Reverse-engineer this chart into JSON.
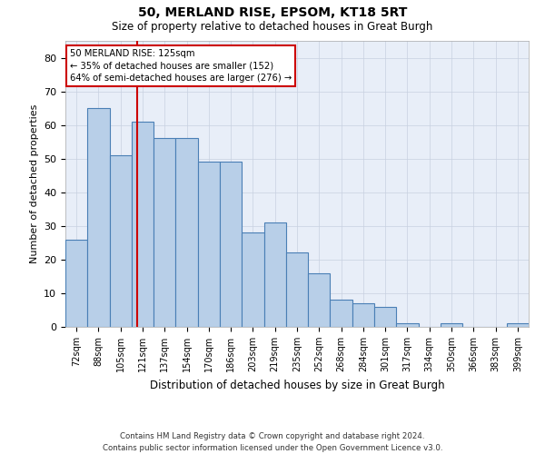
{
  "title1": "50, MERLAND RISE, EPSOM, KT18 5RT",
  "title2": "Size of property relative to detached houses in Great Burgh",
  "xlabel": "Distribution of detached houses by size in Great Burgh",
  "ylabel": "Number of detached properties",
  "footnote1": "Contains HM Land Registry data © Crown copyright and database right 2024.",
  "footnote2": "Contains public sector information licensed under the Open Government Licence v3.0.",
  "property_label": "50 MERLAND RISE: 125sqm",
  "annotation_line1": "← 35% of detached houses are smaller (152)",
  "annotation_line2": "64% of semi-detached houses are larger (276) →",
  "property_size": 125,
  "bar_color": "#b8cfe8",
  "bar_edge_color": "#4a7fb5",
  "vline_color": "#cc0000",
  "background_color": "#e8eef8",
  "grid_color": "#c8d0e0",
  "bin_labels": [
    "72sqm",
    "88sqm",
    "105sqm",
    "121sqm",
    "137sqm",
    "154sqm",
    "170sqm",
    "186sqm",
    "203sqm",
    "219sqm",
    "235sqm",
    "252sqm",
    "268sqm",
    "284sqm",
    "301sqm",
    "317sqm",
    "334sqm",
    "350sqm",
    "366sqm",
    "383sqm",
    "399sqm"
  ],
  "bar_heights": [
    26,
    65,
    51,
    61,
    56,
    56,
    49,
    49,
    28,
    31,
    22,
    16,
    8,
    7,
    6,
    1,
    0,
    1,
    0,
    0,
    1
  ],
  "vline_index": 3.25,
  "ylim": [
    0,
    85
  ],
  "yticks": [
    0,
    10,
    20,
    30,
    40,
    50,
    60,
    70,
    80
  ]
}
